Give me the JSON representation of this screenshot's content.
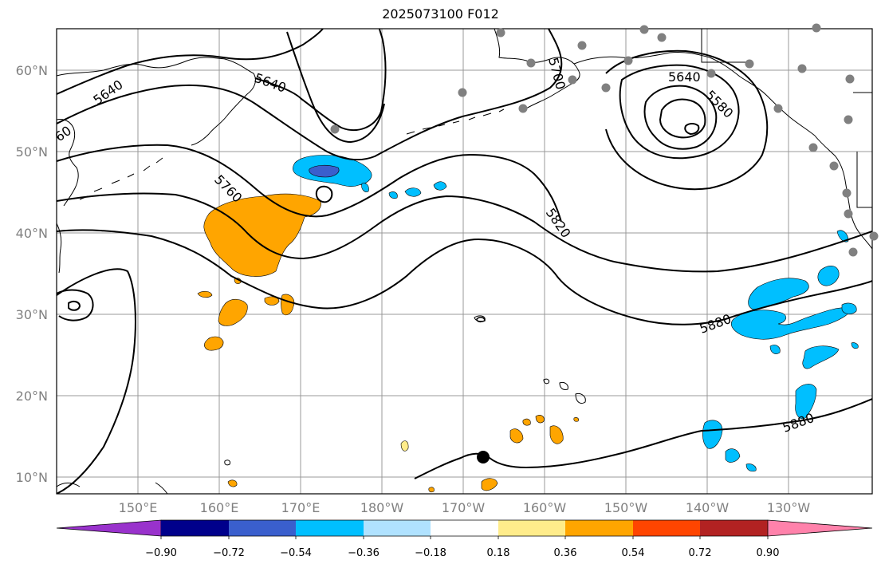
{
  "title": "2025073100 F012",
  "colors": {
    "ocean_bg": "#ffffff",
    "grid": "#999999",
    "coast": "#000000",
    "contour": "#000000",
    "station": "#808080",
    "tick_label": "#808080"
  },
  "lat_labels": [
    "60°N",
    "50°N",
    "40°N",
    "30°N",
    "20°N",
    "10°N"
  ],
  "lon_labels": [
    "150°E",
    "160°E",
    "170°E",
    "180°W",
    "170°W",
    "160°W",
    "150°W",
    "140°W",
    "130°W"
  ],
  "contour_labels": [
    "5640",
    "5640",
    "5640",
    "5700",
    "5580",
    "5760",
    "5820",
    "5880",
    "5880",
    "60"
  ],
  "colorbar": {
    "colors": [
      "#9932cc",
      "#00008b",
      "#3a5fcd",
      "#00bfff",
      "#b0e2ff",
      "#ffffff",
      "#ffec8b",
      "#ffa500",
      "#ff4500",
      "#b22222",
      "#ff82ab"
    ],
    "tick_labels": [
      "−0.90",
      "−0.72",
      "−0.54",
      "−0.36",
      "−0.18",
      "0.18",
      "0.36",
      "0.54",
      "0.72",
      "0.90"
    ]
  },
  "marker": "typhoon-center-marker"
}
